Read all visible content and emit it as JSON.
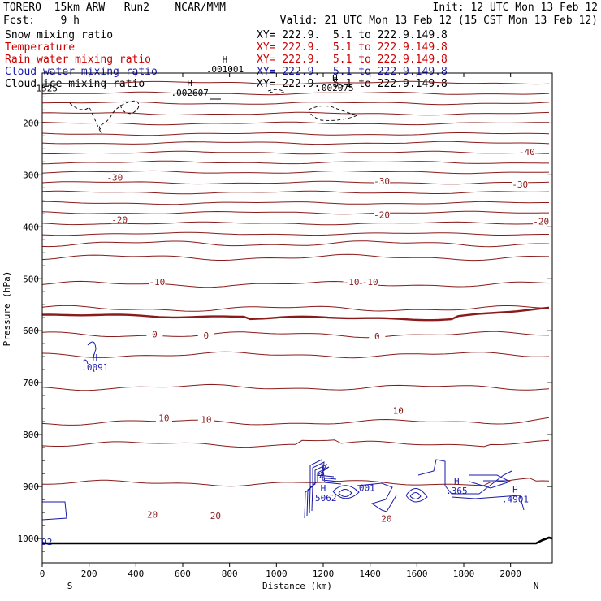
{
  "header": {
    "model": "TORERO  15km ARW   Run2    NCAR/MMM",
    "init": "Init: 12 UTC Mon 13 Feb 12",
    "fcst": "Fcst:    9 h",
    "valid": "Valid: 21 UTC Mon 13 Feb 12 (15 CST Mon 13 Feb 12)"
  },
  "legend": [
    {
      "label": "Snow mixing ratio",
      "xy": "XY= 222.9.  5.1 to 222.9.149.8",
      "color": "#000000"
    },
    {
      "label": "Temperature",
      "xy": "XY= 222.9.  5.1 to 222.9.149.8",
      "color": "#cc0000"
    },
    {
      "label": "Rain water mixing ratio",
      "xy": "XY= 222.9.  5.1 to 222.9.149.8",
      "color": "#cc0000"
    },
    {
      "label": "Cloud water mixing ratio",
      "xy": "XY= 222.9.  5.1 to 222.9.149.8",
      "color": "#1a1aaa"
    },
    {
      "label": "Cloud ice mixing ratio",
      "xy": "XY= 222.9.  5.1 to 222.9.149.8",
      "color": "#000000"
    }
  ],
  "chart_data": {
    "type": "contour",
    "xlabel": "Distance (km)",
    "ylabel": "Pressure (hPa)",
    "xlim": [
      0,
      2180
    ],
    "ylim": [
      1050,
      100
    ],
    "x_ticks": [
      0,
      200,
      400,
      600,
      800,
      1000,
      1200,
      1400,
      1600,
      1800,
      2000
    ],
    "y_ticks": [
      200,
      300,
      400,
      500,
      600,
      700,
      800,
      900,
      1000
    ],
    "left_end": "S",
    "right_end": "N",
    "colors": {
      "temperature": "#8b1a1a",
      "cloud_water": "#1a1aaa",
      "snow": "#000000",
      "surface": "#000000"
    },
    "isotherm_labels": [
      {
        "value": "-40",
        "x": 2070,
        "p": 256
      },
      {
        "value": "-30",
        "x": 310,
        "p": 305
      },
      {
        "value": "-30",
        "x": 1450,
        "p": 312
      },
      {
        "value": "-30",
        "x": 2040,
        "p": 318
      },
      {
        "value": "-20",
        "x": 330,
        "p": 386
      },
      {
        "value": "-20",
        "x": 1450,
        "p": 377
      },
      {
        "value": "-20",
        "x": 2130,
        "p": 389
      },
      {
        "value": "-10",
        "x": 490,
        "p": 506
      },
      {
        "value": "-10",
        "x": 1320,
        "p": 506
      },
      {
        "value": "-10",
        "x": 1400,
        "p": 506
      },
      {
        "value": "0",
        "x": 480,
        "p": 607
      },
      {
        "value": "0",
        "x": 700,
        "p": 609
      },
      {
        "value": "0",
        "x": 1430,
        "p": 611
      },
      {
        "value": "10",
        "x": 520,
        "p": 768
      },
      {
        "value": "10",
        "x": 700,
        "p": 771
      },
      {
        "value": "10",
        "x": 1520,
        "p": 754
      },
      {
        "value": "20",
        "x": 470,
        "p": 954
      },
      {
        "value": "20",
        "x": 740,
        "p": 956
      },
      {
        "value": "20",
        "x": 1470,
        "p": 962
      }
    ],
    "maxima_labels": [
      {
        "mark": "H",
        "value": ".001001",
        "x": 780,
        "p": 93,
        "color": "#000000"
      },
      {
        "mark": "H",
        "value": ".002607",
        "x": 630,
        "p": 138,
        "color": "#000000"
      },
      {
        "mark": "H",
        "value": ".002075",
        "x": 1250,
        "p": 129,
        "color": "#000000"
      },
      {
        "mark": "",
        "value": "1525",
        "x": 20,
        "p": 130,
        "color": "#000000"
      },
      {
        "mark": "H",
        "value": ".0091",
        "x": 225,
        "p": 667,
        "color": "#1a1aaa"
      },
      {
        "mark": "H",
        "value": ".5062",
        "x": 1200,
        "p": 919,
        "color": "#1a1aaa"
      },
      {
        "mark": "",
        "value": ".001",
        "x": 1375,
        "p": 899,
        "color": "#1a1aaa"
      },
      {
        "mark": "H",
        "value": ".365",
        "x": 1770,
        "p": 905,
        "color": "#1a1aaa"
      },
      {
        "mark": "H",
        "value": ".4901",
        "x": 2020,
        "p": 921,
        "color": "#1a1aaa"
      },
      {
        "mark": "",
        "value": "92",
        "x": 20,
        "p": 1003,
        "color": "#1a1aaa"
      }
    ]
  }
}
